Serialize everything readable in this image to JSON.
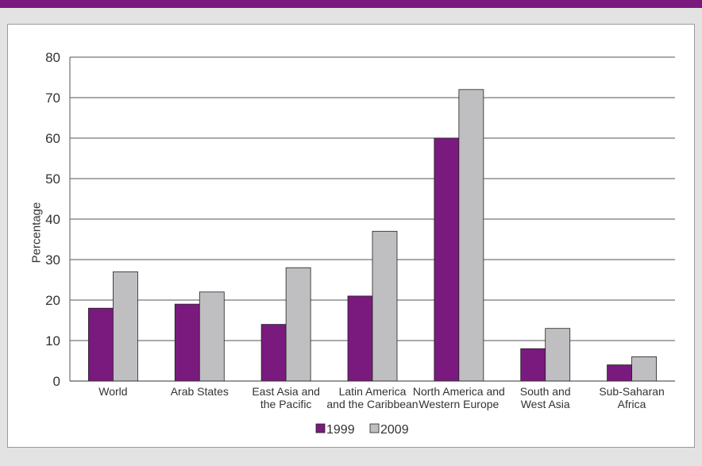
{
  "colors": {
    "top_bar": "#7a1a7e",
    "background": "#e3e3e3",
    "series_1999": "#7a1a7e",
    "series_2009": "#bfbfc1"
  },
  "chart_data": {
    "type": "bar",
    "title": "",
    "xlabel": "",
    "ylabel": "Percentage",
    "ylim": [
      0,
      80
    ],
    "yticks": [
      "0",
      "10",
      "20",
      "30",
      "40",
      "50",
      "60",
      "70",
      "80"
    ],
    "grid": true,
    "legend_position": "bottom-center",
    "categories": [
      [
        "World"
      ],
      [
        "Arab States"
      ],
      [
        "East Asia and",
        "the Pacific"
      ],
      [
        "Latin America",
        "and the Caribbean"
      ],
      [
        "North America and",
        "Western Europe"
      ],
      [
        "South and",
        "West Asia"
      ],
      [
        "Sub-Saharan",
        "Africa"
      ]
    ],
    "series": [
      {
        "name": "1999",
        "color": "#7a1a7e",
        "values": [
          18,
          19,
          14,
          21,
          60,
          8,
          4
        ]
      },
      {
        "name": "2009",
        "color": "#bfbfc1",
        "values": [
          27,
          22,
          28,
          37,
          72,
          13,
          6
        ]
      }
    ]
  }
}
